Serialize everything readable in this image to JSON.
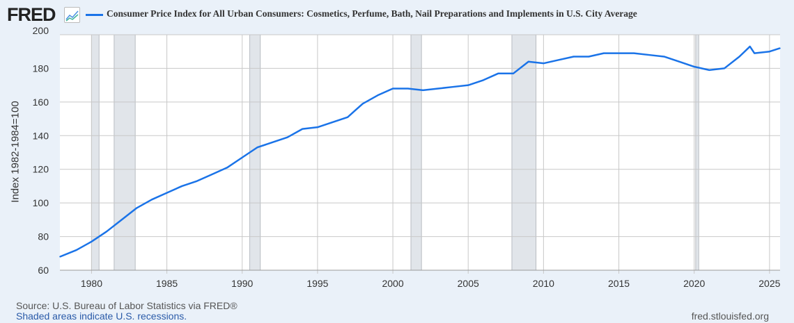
{
  "header": {
    "logo": "FRED",
    "series_title": "Consumer Price Index for All Urban Consumers: Cosmetics, Perfume, Bath, Nail Preparations and Implements in U.S. City Average"
  },
  "footer": {
    "source": "Source: U.S. Bureau of Labor Statistics via FRED®",
    "note": "Shaded areas indicate U.S. recessions.",
    "site": "fred.stlouisfed.org"
  },
  "chart_data": {
    "type": "line",
    "title": "Consumer Price Index for All Urban Consumers: Cosmetics, Perfume, Bath, Nail Preparations and Implements in U.S. City Average",
    "xlabel": "",
    "ylabel": "Index 1982-1984=100",
    "xlim": [
      1977.9,
      2025.7
    ],
    "ylim": [
      60,
      200
    ],
    "yticks": [
      60,
      80,
      100,
      120,
      140,
      160,
      180,
      200
    ],
    "xticks": [
      1980,
      1985,
      1990,
      1995,
      2000,
      2005,
      2010,
      2015,
      2020,
      2025
    ],
    "grid": true,
    "color": "#1a73e8",
    "recessions": [
      [
        1980.0,
        1980.5
      ],
      [
        1981.5,
        1982.9
      ],
      [
        1990.5,
        1991.2
      ],
      [
        2001.2,
        2001.9
      ],
      [
        2007.9,
        2009.5
      ],
      [
        2020.1,
        2020.3
      ]
    ],
    "x": [
      1977.9,
      1979,
      1980,
      1981,
      1982,
      1983,
      1984,
      1985,
      1986,
      1987,
      1988,
      1989,
      1990,
      1991,
      1992,
      1993,
      1994,
      1995,
      1996,
      1997,
      1998,
      1999,
      2000,
      2001,
      2002,
      2003,
      2004,
      2005,
      2006,
      2007,
      2008,
      2009,
      2010,
      2011,
      2012,
      2013,
      2014,
      2015,
      2016,
      2017,
      2018,
      2019,
      2020,
      2021,
      2022,
      2023,
      2023.7,
      2024,
      2025,
      2025.7
    ],
    "y": [
      68,
      72,
      77,
      83,
      90,
      97,
      102,
      106,
      110,
      113,
      117,
      121,
      127,
      133,
      136,
      139,
      144,
      145,
      148,
      151,
      159,
      164,
      168,
      168,
      167,
      168,
      169,
      170,
      173,
      177,
      177,
      184,
      183,
      185,
      187,
      187,
      189,
      189,
      189,
      188,
      187,
      184,
      181,
      179,
      180,
      187,
      193,
      189,
      190,
      192
    ]
  }
}
